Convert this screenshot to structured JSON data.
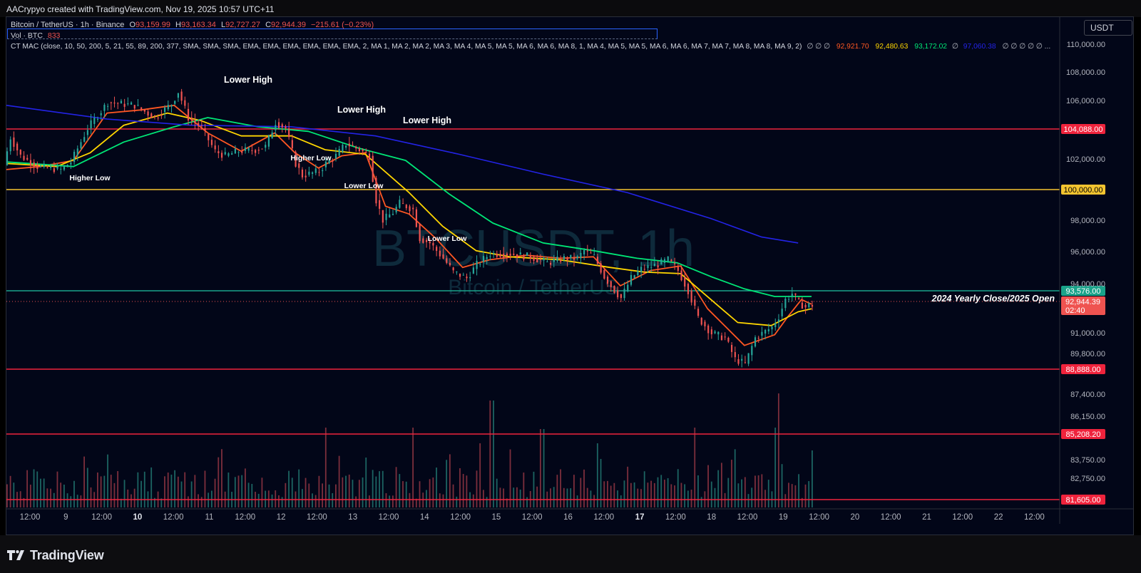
{
  "header": {
    "attribution": "AACrypyo created with TradingView.com, Nov 19, 2025 10:57 UTC+11"
  },
  "legend": {
    "symbol": "Bitcoin / TetherUS · 1h · Binance",
    "o_label": "O",
    "o": "93,159.99",
    "h_label": "H",
    "h": "93,163.34",
    "l_label": "L",
    "l": "92,727.27",
    "c_label": "C",
    "c": "92,944.39",
    "change": "−215.61 (−0.23%)",
    "vol_label": "Vol · BTC",
    "vol": "833",
    "indicator": "CT MAC (close, 10, 50, 200, 5, 21, 55, 89, 200, 377, SMA, SMA, SMA, EMA, EMA, EMA, EMA, EMA, EMA, 2, MA 1, MA 2, MA 2, MA 3, MA 4, MA 5, MA 5, MA 6, MA 6, MA 8, 1, MA 4, MA 5, MA 5, MA 6, MA 6, MA 7, MA 7, MA 8, MA 8, MA 9, 2)",
    "indicator_empty": "∅ ∅ ∅",
    "ind_values": [
      "92,921.70",
      "92,480.63",
      "93,172.02",
      "97,060.38"
    ],
    "ind_tail": "∅ ∅ ∅ ∅ ∅ ..."
  },
  "currency": "USDT",
  "watermark": {
    "symbol": "BTCUSDT, 1h",
    "name": "Bitcoin / TetherUS"
  },
  "footer": {
    "brand": "TradingView"
  },
  "colors": {
    "background": "#020618",
    "up": "#26a69a",
    "down": "#ef5350",
    "ma_fast": "#ff5722",
    "ma_mid": "#ffd600",
    "ma_slow": "#00e676",
    "ma_200": "#2323e6",
    "level_red": "#ef233c",
    "level_yellow": "#f4c430",
    "level_green": "#1aa38a"
  },
  "chart_data": {
    "type": "candlestick",
    "symbol": "BTCUSDT",
    "interval": "1h",
    "ylim": [
      80800,
      111500
    ],
    "y_ticks": [
      "110,000.00",
      "108,000.00",
      "106,000.00",
      "102,000.00",
      "98,000.00",
      "96,000.00",
      "94,000.00",
      "91,000.00",
      "89,800.00",
      "87,400.00",
      "86,150.00",
      "83,750.00",
      "82,750.00"
    ],
    "x_ticks": [
      "12:00",
      "9",
      "12:00",
      "10",
      "12:00",
      "11",
      "12:00",
      "12",
      "12:00",
      "13",
      "12:00",
      "14",
      "12:00",
      "15",
      "12:00",
      "16",
      "12:00",
      "17",
      "12:00",
      "18",
      "12:00",
      "19",
      "12:00",
      "20",
      "12:00",
      "21",
      "12:00",
      "22",
      "12:00"
    ],
    "x_ticks_bold": [
      "10",
      "17"
    ],
    "horizontal_levels": [
      {
        "value": 104088.0,
        "label": "104,088.00",
        "color": "#ef233c"
      },
      {
        "value": 100000.0,
        "label": "100,000.00",
        "color": "#f4c430"
      },
      {
        "value": 93576.0,
        "label": "93,576.00",
        "color": "#1aa38a",
        "annotation": "2024 Yearly Close/2025 Open"
      },
      {
        "value": 88888.0,
        "label": "88,888.00",
        "color": "#ef233c"
      },
      {
        "value": 85208.2,
        "label": "85,208.20",
        "color": "#ef233c"
      },
      {
        "value": 81605.0,
        "label": "81,605.00",
        "color": "#ef233c"
      }
    ],
    "last_price": {
      "value": 92944.39,
      "label": "92,944.39",
      "countdown": "02:40"
    },
    "annotations": [
      {
        "text": "Lower High",
        "x": "11 12:00",
        "y": 107100
      },
      {
        "text": "Lower High",
        "x": "13 00:00",
        "y": 105000
      },
      {
        "text": "Lower High",
        "x": "14 00:00",
        "y": 104250
      },
      {
        "text": "Higher Low",
        "x": "9 08:00",
        "y": 100850
      },
      {
        "text": "Higher Low",
        "x": "12 18:00",
        "y": 102450
      },
      {
        "text": "Lower Low",
        "x": "13 06:00",
        "y": 100400
      },
      {
        "text": "Lower Low",
        "x": "14 18:00",
        "y": 96800
      }
    ],
    "price_path": [
      [
        0,
        102100
      ],
      [
        4,
        103900
      ],
      [
        10,
        102700
      ],
      [
        20,
        102000
      ],
      [
        34,
        101800
      ],
      [
        40,
        102300
      ],
      [
        50,
        104500
      ],
      [
        62,
        106200
      ],
      [
        78,
        106000
      ],
      [
        90,
        105200
      ],
      [
        100,
        106100
      ],
      [
        104,
        106900
      ],
      [
        110,
        105200
      ],
      [
        118,
        104500
      ],
      [
        126,
        103000
      ],
      [
        132,
        102700
      ],
      [
        140,
        103000
      ],
      [
        150,
        103100
      ],
      [
        156,
        103300
      ],
      [
        162,
        104900
      ],
      [
        168,
        104500
      ],
      [
        174,
        102200
      ],
      [
        178,
        101400
      ],
      [
        188,
        101700
      ],
      [
        192,
        102200
      ],
      [
        198,
        102700
      ],
      [
        204,
        103500
      ],
      [
        212,
        103100
      ],
      [
        218,
        102700
      ],
      [
        222,
        99800
      ],
      [
        226,
        98500
      ],
      [
        232,
        99000
      ],
      [
        236,
        99600
      ],
      [
        244,
        99200
      ],
      [
        248,
        97300
      ],
      [
        254,
        97000
      ],
      [
        262,
        96000
      ],
      [
        268,
        95100
      ],
      [
        276,
        94700
      ],
      [
        282,
        95600
      ],
      [
        290,
        96300
      ],
      [
        302,
        96300
      ],
      [
        314,
        96100
      ],
      [
        324,
        95700
      ],
      [
        334,
        96000
      ],
      [
        342,
        96000
      ],
      [
        346,
        96500
      ],
      [
        352,
        96100
      ],
      [
        358,
        94800
      ],
      [
        364,
        93900
      ],
      [
        368,
        93400
      ],
      [
        374,
        94700
      ],
      [
        380,
        95300
      ],
      [
        390,
        95600
      ],
      [
        396,
        95900
      ],
      [
        402,
        95200
      ],
      [
        408,
        93900
      ],
      [
        414,
        92100
      ],
      [
        422,
        91100
      ],
      [
        430,
        90800
      ],
      [
        436,
        89400
      ],
      [
        442,
        89100
      ],
      [
        448,
        90800
      ],
      [
        458,
        91500
      ],
      [
        462,
        92200
      ],
      [
        466,
        93300
      ],
      [
        470,
        93700
      ],
      [
        474,
        93100
      ],
      [
        478,
        92800
      ],
      [
        480,
        92944
      ]
    ],
    "ma_series": [
      {
        "name": "MA 10",
        "color": "#ff5722",
        "points": [
          [
            0,
            101800
          ],
          [
            20,
            102000
          ],
          [
            40,
            102400
          ],
          [
            60,
            105500
          ],
          [
            80,
            105700
          ],
          [
            100,
            106000
          ],
          [
            120,
            104200
          ],
          [
            140,
            103000
          ],
          [
            160,
            104200
          ],
          [
            172,
            102900
          ],
          [
            186,
            101900
          ],
          [
            200,
            102700
          ],
          [
            214,
            102900
          ],
          [
            226,
            99400
          ],
          [
            240,
            98900
          ],
          [
            256,
            97300
          ],
          [
            272,
            95400
          ],
          [
            288,
            95900
          ],
          [
            310,
            96200
          ],
          [
            330,
            96000
          ],
          [
            350,
            96100
          ],
          [
            366,
            94200
          ],
          [
            384,
            95200
          ],
          [
            402,
            95500
          ],
          [
            418,
            92700
          ],
          [
            440,
            90300
          ],
          [
            458,
            91000
          ],
          [
            466,
            92200
          ],
          [
            474,
            93300
          ],
          [
            480,
            93000
          ]
        ]
      },
      {
        "name": "MA 50",
        "color": "#ffd600",
        "points": [
          [
            0,
            102200
          ],
          [
            30,
            102000
          ],
          [
            50,
            102900
          ],
          [
            70,
            104700
          ],
          [
            96,
            105500
          ],
          [
            116,
            105000
          ],
          [
            140,
            104000
          ],
          [
            170,
            104000
          ],
          [
            190,
            103100
          ],
          [
            214,
            102800
          ],
          [
            240,
            100300
          ],
          [
            260,
            98100
          ],
          [
            280,
            96500
          ],
          [
            300,
            96100
          ],
          [
            330,
            95900
          ],
          [
            360,
            95400
          ],
          [
            380,
            95100
          ],
          [
            402,
            95000
          ],
          [
            420,
            93300
          ],
          [
            436,
            91800
          ],
          [
            456,
            91600
          ],
          [
            472,
            92500
          ],
          [
            480,
            92700
          ]
        ]
      },
      {
        "name": "MA 200",
        "color": "#00e676",
        "points": [
          [
            0,
            102300
          ],
          [
            40,
            102000
          ],
          [
            70,
            103600
          ],
          [
            100,
            104600
          ],
          [
            120,
            105200
          ],
          [
            150,
            104600
          ],
          [
            180,
            104300
          ],
          [
            210,
            103200
          ],
          [
            238,
            102400
          ],
          [
            264,
            100200
          ],
          [
            290,
            98300
          ],
          [
            320,
            97000
          ],
          [
            350,
            96500
          ],
          [
            376,
            96000
          ],
          [
            400,
            95700
          ],
          [
            420,
            94800
          ],
          [
            440,
            94000
          ],
          [
            458,
            93500
          ],
          [
            480,
            93500
          ]
        ]
      },
      {
        "name": "MA 200 SMA",
        "color": "#2323e6",
        "points": [
          [
            0,
            106000
          ],
          [
            60,
            105100
          ],
          [
            110,
            104700
          ],
          [
            170,
            104600
          ],
          [
            220,
            104000
          ],
          [
            270,
            102800
          ],
          [
            320,
            101500
          ],
          [
            370,
            100300
          ],
          [
            420,
            98600
          ],
          [
            450,
            97400
          ],
          [
            472,
            97000
          ]
        ]
      }
    ]
  }
}
